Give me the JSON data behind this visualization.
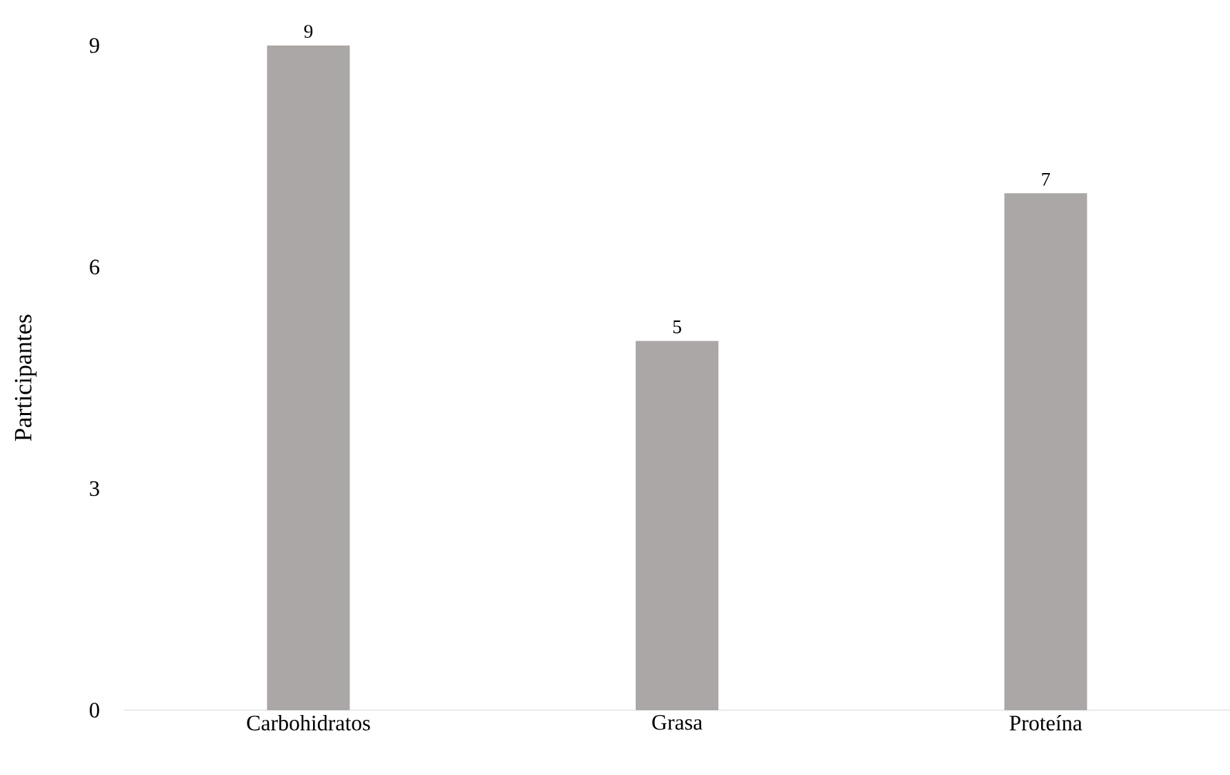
{
  "chart_data": {
    "type": "bar",
    "ylabel": "Participantes",
    "categories": [
      "Carbohidratos",
      "Grasa",
      "Proteína"
    ],
    "values": [
      9,
      5,
      7
    ],
    "color": "#aba7a6",
    "ylim": [
      0,
      9
    ],
    "yticks": [
      0,
      3,
      6,
      9
    ],
    "grid": false,
    "data_labels": true
  }
}
